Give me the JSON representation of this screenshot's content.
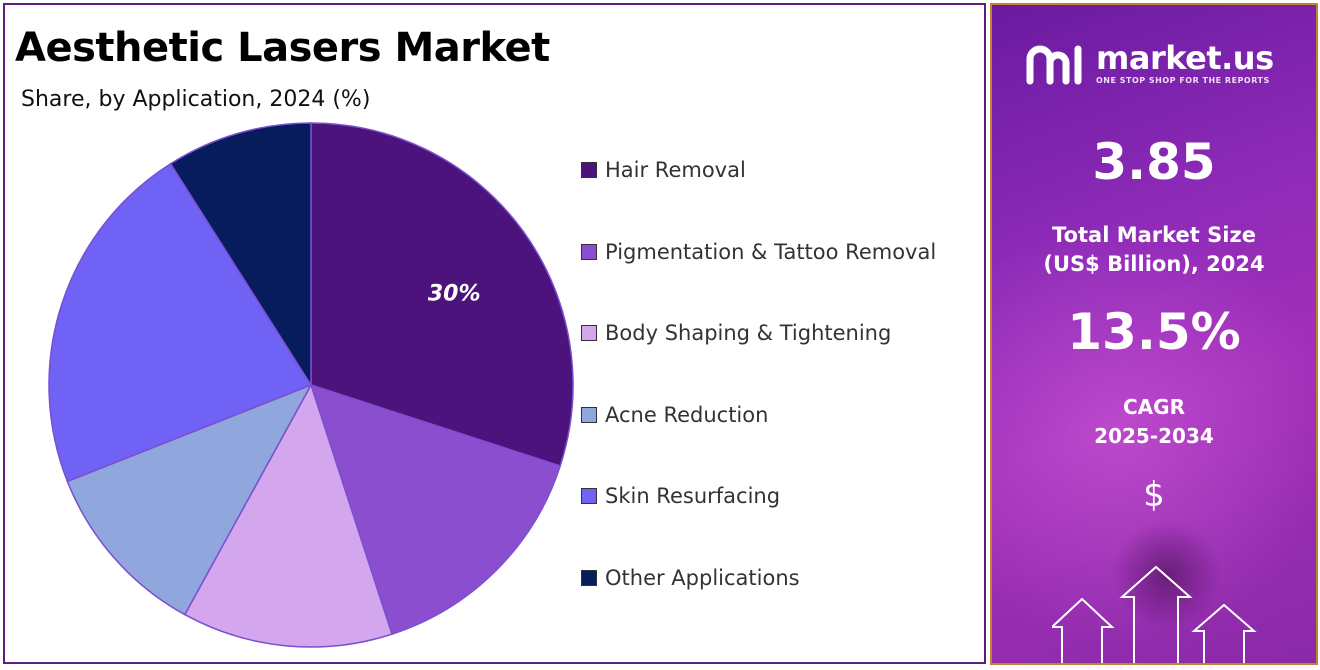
{
  "title": "Aesthetic Lasers Market",
  "subtitle": "Share, by Application, 2024 (%)",
  "chart_data": {
    "type": "pie",
    "categories": [
      "Hair Removal",
      "Pigmentation & Tattoo Removal",
      "Body Shaping & Tightening",
      "Acne Reduction",
      "Skin Resurfacing",
      "Other Applications"
    ],
    "values": [
      30,
      15,
      13,
      11,
      22,
      9
    ],
    "data_labels": [
      "30%",
      "",
      "",
      "",
      "",
      ""
    ],
    "colors": [
      "#4b137b",
      "#8a4ecf",
      "#d3a6ee",
      "#8fa7dc",
      "#6f62f5",
      "#061c5c"
    ],
    "legend_position": "right",
    "start_angle": "12 o'clock, clockwise"
  },
  "sidebar": {
    "logo_name": "market.us",
    "logo_tagline": "ONE STOP SHOP FOR THE REPORTS",
    "market_size_value": "3.85",
    "market_size_label_line1": "Total Market Size",
    "market_size_label_line2": "(US$ Billion), 2024",
    "cagr_value": "13.5%",
    "cagr_label_line1": "CAGR",
    "cagr_label_line2": "2025-2034",
    "dollar_icon": "$"
  }
}
